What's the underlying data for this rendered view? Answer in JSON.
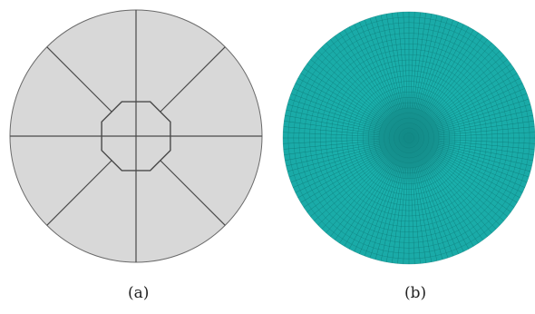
{
  "figure": {
    "panel_a": {
      "caption": "(a)",
      "geometry_fill": "#d8d8d8",
      "edge_color": "#555555",
      "octagon_sides": 8,
      "spoke_count": 8
    },
    "panel_b": {
      "caption": "(b)",
      "mesh_fill": "#1aa9a6",
      "mesh_line": "#0a6f6d",
      "radial_lines": 140,
      "rings": 18
    }
  }
}
